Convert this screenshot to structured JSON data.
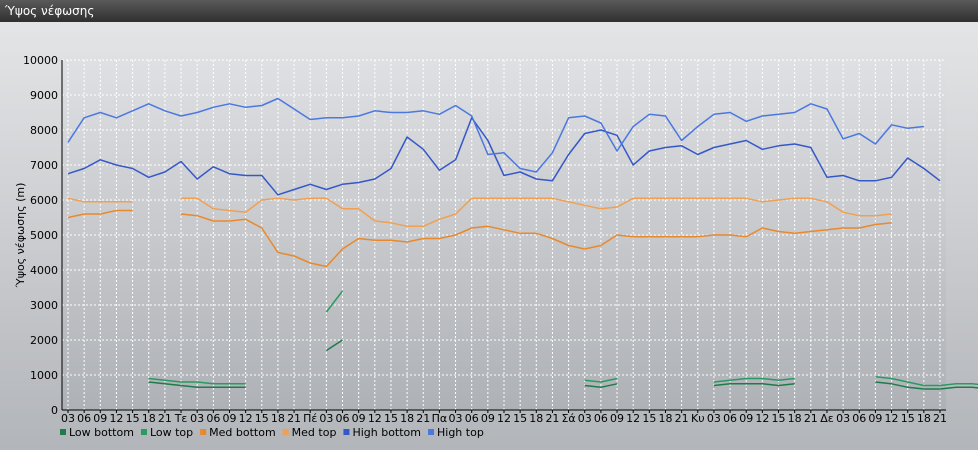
{
  "window": {
    "title": "Ύψος νέφωσης"
  },
  "chart_data": {
    "type": "line",
    "title": "",
    "xlabel": "",
    "ylabel": "Ύψος νέφωσης (m)",
    "ylim": [
      0,
      10000
    ],
    "yticks": [
      0,
      1000,
      2000,
      3000,
      4000,
      5000,
      6000,
      7000,
      8000,
      9000,
      10000
    ],
    "grid": true,
    "legend_position": "bottom-left",
    "x_tick_labels": [
      "03",
      "06",
      "09",
      "12",
      "15",
      "18",
      "21",
      "Τε",
      "03",
      "06",
      "09",
      "12",
      "15",
      "18",
      "21",
      "Πέ",
      "03",
      "06",
      "09",
      "12",
      "15",
      "18",
      "21",
      "Πα",
      "03",
      "06",
      "09",
      "12",
      "15",
      "18",
      "21",
      "Σά",
      "03",
      "06",
      "09",
      "12",
      "15",
      "18",
      "21",
      "Κυ",
      "03",
      "06",
      "09",
      "12",
      "15",
      "18",
      "21",
      "Δε",
      "03",
      "06",
      "09",
      "12",
      "15",
      "18",
      "21"
    ],
    "series": [
      {
        "name": "Low bottom",
        "color": "#1f7a4c",
        "values": [
          null,
          null,
          null,
          null,
          null,
          800,
          750,
          700,
          650,
          650,
          650,
          650,
          null,
          null,
          null,
          null,
          1700,
          2000,
          null,
          null,
          null,
          null,
          null,
          null,
          null,
          null,
          null,
          null,
          null,
          null,
          null,
          null,
          700,
          650,
          750,
          null,
          null,
          null,
          null,
          null,
          700,
          750,
          750,
          750,
          700,
          750,
          null,
          null,
          null,
          null,
          800,
          750,
          650,
          600,
          600,
          650,
          650,
          600,
          650,
          700,
          750,
          700
        ]
      },
      {
        "name": "Low top",
        "color": "#2a9a62",
        "values": [
          null,
          null,
          null,
          null,
          null,
          900,
          850,
          800,
          800,
          750,
          750,
          750,
          null,
          null,
          null,
          null,
          2800,
          3400,
          null,
          null,
          null,
          null,
          null,
          null,
          null,
          null,
          null,
          null,
          null,
          null,
          null,
          null,
          850,
          800,
          900,
          null,
          null,
          null,
          null,
          null,
          800,
          850,
          900,
          900,
          850,
          900,
          null,
          null,
          null,
          null,
          950,
          900,
          800,
          700,
          700,
          750,
          750,
          700,
          750,
          800,
          950,
          900
        ]
      },
      {
        "name": "Med bottom",
        "color": "#e8892c",
        "values": [
          5500,
          5600,
          5600,
          5700,
          5700,
          null,
          null,
          5600,
          5550,
          5400,
          5400,
          5450,
          5200,
          4500,
          4400,
          4200,
          4100,
          4600,
          4900,
          4850,
          4850,
          4800,
          4900,
          4900,
          5000,
          5200,
          5250,
          5150,
          5050,
          5050,
          4900,
          4700,
          4600,
          4700,
          5000,
          4950,
          4950,
          4950,
          4950,
          4950,
          5000,
          5000,
          4950,
          5200,
          5100,
          5050,
          5100,
          5150,
          5200,
          5200,
          5300,
          5350,
          null,
          null,
          null,
          null,
          null,
          null,
          null,
          null,
          5950,
          5900
        ]
      },
      {
        "name": "Med top",
        "color": "#f0a050",
        "values": [
          6050,
          5950,
          5950,
          5950,
          5950,
          null,
          null,
          6050,
          6050,
          5750,
          5700,
          5650,
          6000,
          6050,
          6000,
          6050,
          6050,
          5750,
          5750,
          5400,
          5350,
          5250,
          5250,
          5450,
          5600,
          6050,
          6050,
          6050,
          6050,
          6050,
          6050,
          5950,
          5850,
          5750,
          5800,
          6050,
          6050,
          6050,
          6050,
          6050,
          6050,
          6050,
          6050,
          5950,
          6000,
          6050,
          6050,
          5950,
          5650,
          5550,
          5550,
          5600,
          null,
          null,
          null,
          null,
          null,
          null,
          null,
          null,
          6100,
          6100
        ]
      },
      {
        "name": "High bottom",
        "color": "#3558c8",
        "values": [
          6750,
          6900,
          7150,
          7000,
          6900,
          6650,
          6800,
          7100,
          6600,
          6950,
          6750,
          6700,
          6700,
          6150,
          6300,
          6450,
          6300,
          6450,
          6500,
          6600,
          6900,
          7800,
          7450,
          6850,
          7150,
          8350,
          7700,
          6700,
          6800,
          6600,
          6550,
          7300,
          7900,
          8000,
          7850,
          7000,
          7400,
          7500,
          7550,
          7300,
          7500,
          7600,
          7700,
          7450,
          7550,
          7600,
          7500,
          6650,
          6700,
          6550,
          6550,
          6650,
          7200,
          6900,
          6550,
          null,
          null,
          null,
          null,
          null,
          null,
          null
        ]
      },
      {
        "name": "High top",
        "color": "#4a78e0",
        "values": [
          7650,
          8350,
          8500,
          8350,
          8550,
          8750,
          8550,
          8400,
          8500,
          8650,
          8750,
          8650,
          8700,
          8900,
          8600,
          8300,
          8350,
          8350,
          8400,
          8550,
          8500,
          8500,
          8550,
          8450,
          8700,
          8400,
          7300,
          7350,
          6900,
          6800,
          7350,
          8350,
          8400,
          8200,
          7400,
          8100,
          8450,
          8400,
          7700,
          8100,
          8450,
          8500,
          8250,
          8400,
          8450,
          8500,
          8750,
          8600,
          7750,
          7900,
          7600,
          8150,
          8050,
          8100,
          null,
          null,
          null,
          null,
          null,
          null,
          null,
          null
        ]
      }
    ]
  }
}
